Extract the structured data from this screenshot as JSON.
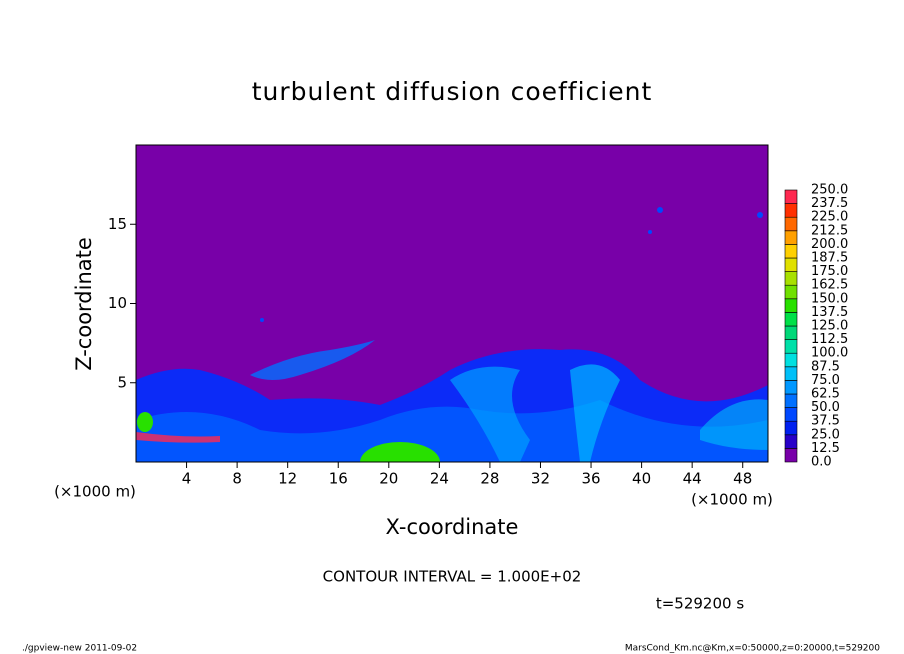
{
  "chart_data": {
    "type": "contour",
    "title": "turbulent diffusion coefficient",
    "xlabel": "X-coordinate",
    "ylabel": "Z-coordinate",
    "xunit_left": "(×1000 m)",
    "xunit_right": "(×1000 m)",
    "xlim": [
      0,
      50
    ],
    "ylim": [
      0,
      20
    ],
    "xticks": [
      4,
      8,
      12,
      16,
      20,
      24,
      28,
      32,
      36,
      40,
      44,
      48
    ],
    "yticks": [
      5,
      10,
      15
    ],
    "colorbar": {
      "levels": [
        {
          "value": 0,
          "label": "0.0"
        },
        {
          "value": 12.5,
          "label": "12.5"
        },
        {
          "value": 25,
          "label": "25.0"
        },
        {
          "value": 37.5,
          "label": "37.5"
        },
        {
          "value": 50,
          "label": "50.0"
        },
        {
          "value": 62.5,
          "label": "62.5"
        },
        {
          "value": 75,
          "label": "75.0"
        },
        {
          "value": 87.5,
          "label": "87.5"
        },
        {
          "value": 100,
          "label": "100.0"
        },
        {
          "value": 112.5,
          "label": "112.5"
        },
        {
          "value": 125,
          "label": "125.0"
        },
        {
          "value": 137.5,
          "label": "137.5"
        },
        {
          "value": 150,
          "label": "150.0"
        },
        {
          "value": 162.5,
          "label": "162.5"
        },
        {
          "value": 175,
          "label": "175.0"
        },
        {
          "value": 187.5,
          "label": "187.5"
        },
        {
          "value": 200,
          "label": "200.0"
        },
        {
          "value": 212.5,
          "label": "212.5"
        },
        {
          "value": 225,
          "label": "225.0"
        },
        {
          "value": 237.5,
          "label": "237.5"
        },
        {
          "value": 250,
          "label": "250.0"
        }
      ],
      "colors": [
        "#7800a8",
        "#2800c8",
        "#0020f0",
        "#0048ff",
        "#0070ff",
        "#0098ff",
        "#00c0f8",
        "#00e0e0",
        "#00e0a8",
        "#00d878",
        "#00e048",
        "#28e000",
        "#70e000",
        "#a8e000",
        "#e0e000",
        "#ffd000",
        "#ffa000",
        "#ff6800",
        "#ff3000",
        "#ff2850",
        "#ff8888"
      ]
    },
    "contour_interval": "CONTOUR INTERVAL = 1.000E+02",
    "time_label": "t=529200 s",
    "footer_left": "./gpview-new   2011-09-02",
    "footer_right": "MarsCond_Km.nc@Km,x=0:50000,z=0:20000,t=529200"
  }
}
